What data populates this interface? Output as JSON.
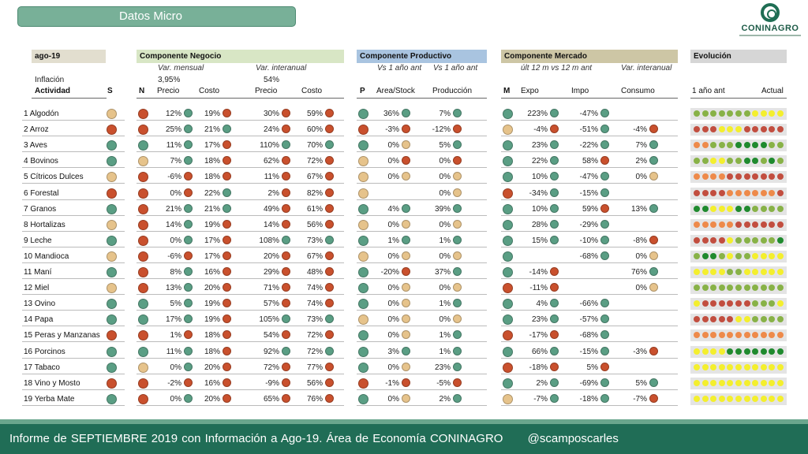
{
  "title": "Datos Micro",
  "logo": {
    "name": "CONINAGRO"
  },
  "period": "ago-19",
  "inflacion": {
    "label": "Inflación",
    "value": "3,95%",
    "interanual": "54%"
  },
  "headers": {
    "negocio": {
      "label": "Componente Negocio",
      "color": "#d8e6c5"
    },
    "productivo": {
      "label": "Componente Productivo",
      "color": "#a9c4e0"
    },
    "mercado": {
      "label": "Componente Mercado",
      "color": "#cdc6a5"
    },
    "evolucion": {
      "label": "Evolución",
      "color": "#d6d6d6"
    }
  },
  "subheaders": {
    "var_mensual": "Var. mensual",
    "var_interanual": "Var. interanual",
    "vs1a": "Vs 1 año ant",
    "vs1b": "Vs 1 año ant",
    "ult12": "últ 12 m vs 12 m ant",
    "var_inter_m": "Var. interanual"
  },
  "cols": {
    "actividad": "Actividad",
    "s": "S",
    "n": "N",
    "precio": "Precio",
    "costo": "Costo",
    "precio2": "Precio",
    "costo2": "Costo",
    "p": "P",
    "area": "Area/Stock",
    "produccion": "Producción",
    "m": "M",
    "expo": "Expo",
    "impo": "Impo",
    "consumo": "Consumo",
    "evo_ant": "1 año ant",
    "evo_act": "Actual"
  },
  "colors": {
    "G": "#5a9e84",
    "R": "#c9502d",
    "Y": "#e6c38b",
    "y": "#f4ef2d",
    "o": "#ee8a4a",
    "g": "#88b247",
    "d": "#1f8a2e",
    "r": "#c24e3f"
  },
  "rows": [
    {
      "n": "1",
      "name": "Algodón",
      "s": "Y",
      "nn": "R",
      "c": [
        [
          "12%",
          "G"
        ],
        [
          "19%",
          "R"
        ],
        [
          "30%",
          "R"
        ],
        [
          "59%",
          "R"
        ]
      ],
      "p": "G",
      "pc": [
        [
          "36%",
          "G"
        ],
        [
          "7%",
          "G"
        ]
      ],
      "m": "G",
      "mc": [
        [
          "223%",
          "G"
        ],
        [
          "-47%",
          "G"
        ],
        null
      ],
      "evo": "gggggggyyyy"
    },
    {
      "n": "2",
      "name": "Arroz",
      "s": "R",
      "nn": "R",
      "c": [
        [
          "25%",
          "G"
        ],
        [
          "21%",
          "G"
        ],
        [
          "24%",
          "R"
        ],
        [
          "60%",
          "R"
        ]
      ],
      "p": "R",
      "pc": [
        [
          "-3%",
          "R"
        ],
        [
          "-12%",
          "R"
        ]
      ],
      "m": "Y",
      "mc": [
        [
          "-4%",
          "R"
        ],
        [
          "-51%",
          "G"
        ],
        [
          "-4%",
          "R"
        ]
      ],
      "evo": "rrryyyrrrrr"
    },
    {
      "n": "3",
      "name": "Aves",
      "s": "G",
      "nn": "G",
      "c": [
        [
          "11%",
          "G"
        ],
        [
          "17%",
          "R"
        ],
        [
          "110%",
          "G"
        ],
        [
          "70%",
          "G"
        ]
      ],
      "p": "G",
      "pc": [
        [
          "0%",
          "Y"
        ],
        [
          "5%",
          "G"
        ]
      ],
      "m": "G",
      "mc": [
        [
          "23%",
          "G"
        ],
        [
          "-22%",
          "G"
        ],
        [
          "7%",
          "G"
        ]
      ],
      "evo": "oogggddddgg"
    },
    {
      "n": "4",
      "name": "Bovinos",
      "s": "G",
      "nn": "Y",
      "c": [
        [
          "7%",
          "G"
        ],
        [
          "18%",
          "R"
        ],
        [
          "62%",
          "R"
        ],
        [
          "72%",
          "R"
        ]
      ],
      "p": "Y",
      "pc": [
        [
          "0%",
          "R"
        ],
        [
          "0%",
          "R"
        ]
      ],
      "m": "G",
      "mc": [
        [
          "22%",
          "G"
        ],
        [
          "58%",
          "R"
        ],
        [
          "2%",
          "G"
        ]
      ],
      "evo": "ggyyggddgdg"
    },
    {
      "n": "5",
      "name": "Cítricos Dulces",
      "s": "Y",
      "nn": "R",
      "c": [
        [
          "-6%",
          "R"
        ],
        [
          "18%",
          "R"
        ],
        [
          "11%",
          "R"
        ],
        [
          "67%",
          "R"
        ]
      ],
      "p": "Y",
      "pc": [
        [
          "0%",
          "Y"
        ],
        [
          "0%",
          "Y"
        ]
      ],
      "m": "G",
      "mc": [
        [
          "10%",
          "G"
        ],
        [
          "-47%",
          "G"
        ],
        [
          "0%",
          "Y"
        ]
      ],
      "evo": "oooorrrrrrr"
    },
    {
      "n": "6",
      "name": "Forestal",
      "s": "R",
      "nn": "R",
      "c": [
        [
          "0%",
          "R"
        ],
        [
          "22%",
          "G"
        ],
        [
          "2%",
          "R"
        ],
        [
          "82%",
          "R"
        ]
      ],
      "p": "Y",
      "pc": [
        null,
        [
          "0%",
          "Y"
        ]
      ],
      "m": "R",
      "mc": [
        [
          "-34%",
          "G"
        ],
        [
          "-15%",
          "G"
        ],
        null
      ],
      "evo": "rrrroooooor"
    },
    {
      "n": "7",
      "name": "Granos",
      "s": "G",
      "nn": "R",
      "c": [
        [
          "21%",
          "G"
        ],
        [
          "21%",
          "G"
        ],
        [
          "49%",
          "R"
        ],
        [
          "61%",
          "R"
        ]
      ],
      "p": "G",
      "pc": [
        [
          "4%",
          "G"
        ],
        [
          "39%",
          "G"
        ]
      ],
      "m": "G",
      "mc": [
        [
          "10%",
          "G"
        ],
        [
          "59%",
          "R"
        ],
        [
          "13%",
          "G"
        ]
      ],
      "evo": "ddyyyddgggg"
    },
    {
      "n": "8",
      "name": "Hortalizas",
      "s": "Y",
      "nn": "R",
      "c": [
        [
          "14%",
          "G"
        ],
        [
          "19%",
          "R"
        ],
        [
          "14%",
          "R"
        ],
        [
          "56%",
          "R"
        ]
      ],
      "p": "Y",
      "pc": [
        [
          "0%",
          "Y"
        ],
        [
          "0%",
          "Y"
        ]
      ],
      "m": "G",
      "mc": [
        [
          "28%",
          "G"
        ],
        [
          "-29%",
          "G"
        ],
        null
      ],
      "evo": "ooooorrrrrr"
    },
    {
      "n": "9",
      "name": "Leche",
      "s": "G",
      "nn": "R",
      "c": [
        [
          "0%",
          "G"
        ],
        [
          "17%",
          "R"
        ],
        [
          "108%",
          "G"
        ],
        [
          "73%",
          "G"
        ]
      ],
      "p": "G",
      "pc": [
        [
          "1%",
          "G"
        ],
        [
          "1%",
          "G"
        ]
      ],
      "m": "G",
      "mc": [
        [
          "15%",
          "G"
        ],
        [
          "-10%",
          "G"
        ],
        [
          "-8%",
          "R"
        ]
      ],
      "evo": "rrrrygggggd"
    },
    {
      "n": "10",
      "name": "Mandioca",
      "s": "Y",
      "nn": "R",
      "c": [
        [
          "-6%",
          "R"
        ],
        [
          "17%",
          "R"
        ],
        [
          "20%",
          "R"
        ],
        [
          "67%",
          "R"
        ]
      ],
      "p": "Y",
      "pc": [
        [
          "0%",
          "Y"
        ],
        [
          "0%",
          "Y"
        ]
      ],
      "m": "G",
      "mc": [
        null,
        [
          "-68%",
          "G"
        ],
        [
          "0%",
          "Y"
        ]
      ],
      "evo": "gddgyggyyyy"
    },
    {
      "n": "11",
      "name": "Maní",
      "s": "G",
      "nn": "R",
      "c": [
        [
          "8%",
          "G"
        ],
        [
          "16%",
          "R"
        ],
        [
          "29%",
          "R"
        ],
        [
          "48%",
          "R"
        ]
      ],
      "p": "G",
      "pc": [
        [
          "-20%",
          "R"
        ],
        [
          "37%",
          "G"
        ]
      ],
      "m": "G",
      "mc": [
        [
          "-14%",
          "R"
        ],
        null,
        [
          "76%",
          "G"
        ]
      ],
      "evo": "yyyyggyyyyy"
    },
    {
      "n": "12",
      "name": "Miel",
      "s": "Y",
      "nn": "R",
      "c": [
        [
          "13%",
          "G"
        ],
        [
          "20%",
          "R"
        ],
        [
          "71%",
          "R"
        ],
        [
          "74%",
          "R"
        ]
      ],
      "p": "G",
      "pc": [
        [
          "0%",
          "Y"
        ],
        [
          "0%",
          "Y"
        ]
      ],
      "m": "R",
      "mc": [
        [
          "-11%",
          "R"
        ],
        null,
        [
          "0%",
          "Y"
        ]
      ],
      "evo": "ggggggggggg"
    },
    {
      "n": "13",
      "name": "Ovino",
      "s": "G",
      "nn": "G",
      "c": [
        [
          "5%",
          "G"
        ],
        [
          "19%",
          "R"
        ],
        [
          "57%",
          "R"
        ],
        [
          "74%",
          "R"
        ]
      ],
      "p": "G",
      "pc": [
        [
          "0%",
          "Y"
        ],
        [
          "1%",
          "G"
        ]
      ],
      "m": "G",
      "mc": [
        [
          "4%",
          "G"
        ],
        [
          "-66%",
          "G"
        ],
        null
      ],
      "evo": "yrrrrrrgggy"
    },
    {
      "n": "14",
      "name": "Papa",
      "s": "G",
      "nn": "G",
      "c": [
        [
          "17%",
          "G"
        ],
        [
          "19%",
          "R"
        ],
        [
          "105%",
          "G"
        ],
        [
          "73%",
          "G"
        ]
      ],
      "p": "Y",
      "pc": [
        [
          "0%",
          "Y"
        ],
        [
          "0%",
          "Y"
        ]
      ],
      "m": "G",
      "mc": [
        [
          "23%",
          "G"
        ],
        [
          "-57%",
          "G"
        ],
        null
      ],
      "evo": "rrrrryygggg"
    },
    {
      "n": "15",
      "name": "Peras y Manzanas",
      "s": "R",
      "nn": "R",
      "c": [
        [
          "1%",
          "R"
        ],
        [
          "18%",
          "R"
        ],
        [
          "54%",
          "R"
        ],
        [
          "72%",
          "R"
        ]
      ],
      "p": "G",
      "pc": [
        [
          "0%",
          "Y"
        ],
        [
          "1%",
          "G"
        ]
      ],
      "m": "R",
      "mc": [
        [
          "-17%",
          "R"
        ],
        [
          "-68%",
          "G"
        ],
        null
      ],
      "evo": "ooooooooooo"
    },
    {
      "n": "16",
      "name": "Porcinos",
      "s": "G",
      "nn": "G",
      "c": [
        [
          "11%",
          "G"
        ],
        [
          "18%",
          "R"
        ],
        [
          "92%",
          "G"
        ],
        [
          "72%",
          "G"
        ]
      ],
      "p": "G",
      "pc": [
        [
          "3%",
          "G"
        ],
        [
          "1%",
          "G"
        ]
      ],
      "m": "G",
      "mc": [
        [
          "66%",
          "G"
        ],
        [
          "-15%",
          "G"
        ],
        [
          "-3%",
          "R"
        ]
      ],
      "evo": "yyyyddddddd"
    },
    {
      "n": "17",
      "name": "Tabaco",
      "s": "G",
      "nn": "Y",
      "c": [
        [
          "0%",
          "G"
        ],
        [
          "20%",
          "R"
        ],
        [
          "72%",
          "R"
        ],
        [
          "77%",
          "R"
        ]
      ],
      "p": "G",
      "pc": [
        [
          "0%",
          "Y"
        ],
        [
          "23%",
          "G"
        ]
      ],
      "m": "R",
      "mc": [
        [
          "-18%",
          "R"
        ],
        [
          "5%",
          "R"
        ],
        null
      ],
      "evo": "yyyyyyyyyyy"
    },
    {
      "n": "18",
      "name": "Vino y Mosto",
      "s": "R",
      "nn": "R",
      "c": [
        [
          "-2%",
          "R"
        ],
        [
          "16%",
          "R"
        ],
        [
          "-9%",
          "R"
        ],
        [
          "56%",
          "R"
        ]
      ],
      "p": "R",
      "pc": [
        [
          "-1%",
          "R"
        ],
        [
          "-5%",
          "R"
        ]
      ],
      "m": "G",
      "mc": [
        [
          "2%",
          "G"
        ],
        [
          "-69%",
          "G"
        ],
        [
          "5%",
          "G"
        ]
      ],
      "evo": "yyyyyyyyyyy"
    },
    {
      "n": "19",
      "name": "Yerba Mate",
      "s": "G",
      "nn": "R",
      "c": [
        [
          "0%",
          "G"
        ],
        [
          "20%",
          "R"
        ],
        [
          "65%",
          "R"
        ],
        [
          "76%",
          "R"
        ]
      ],
      "p": "G",
      "pc": [
        [
          "0%",
          "Y"
        ],
        [
          "2%",
          "G"
        ]
      ],
      "m": "Y",
      "mc": [
        [
          "-7%",
          "G"
        ],
        [
          "-18%",
          "G"
        ],
        [
          "-7%",
          "R"
        ]
      ],
      "evo": "yyyyyyyyyyy"
    }
  ],
  "footer": {
    "text": "Informe de SEPTIEMBRE 2019 con Información a Ago-19. Área de Economía CONINAGRO",
    "handle": "@scamposcarles"
  }
}
